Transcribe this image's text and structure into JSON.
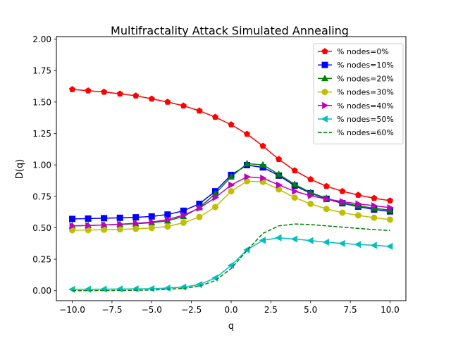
{
  "chart_data": {
    "type": "line",
    "title": "Multifractality Attack Simulated Annealing",
    "xlabel": "q",
    "ylabel": "D(q)",
    "xlim": [
      -11.0,
      11.0
    ],
    "ylim": [
      -0.08,
      2.02
    ],
    "xticks": [
      -10,
      -7.5,
      -5,
      -2.5,
      0,
      2.5,
      5,
      7.5,
      10
    ],
    "xtick_labels": [
      "−10.0",
      "−7.5",
      "−5.0",
      "−2.5",
      "0.0",
      "2.5",
      "5.0",
      "7.5",
      "10.0"
    ],
    "yticks": [
      0,
      0.25,
      0.5,
      0.75,
      1.0,
      1.25,
      1.5,
      1.75,
      2.0
    ],
    "ytick_labels": [
      "0.00",
      "0.25",
      "0.50",
      "0.75",
      "1.00",
      "1.25",
      "1.50",
      "1.75",
      "2.00"
    ],
    "grid": false,
    "legend_position": "top-right",
    "x": [
      -10,
      -9,
      -8,
      -7,
      -6,
      -5,
      -4,
      -3,
      -2,
      -1,
      0,
      1,
      2,
      3,
      4,
      5,
      6,
      7,
      8,
      9,
      10
    ],
    "series": [
      {
        "name": "% nodes=0%",
        "color": "#ff0000",
        "marker": "pentagon",
        "line": "solid",
        "values": [
          1.6,
          1.59,
          1.58,
          1.565,
          1.55,
          1.525,
          1.5,
          1.47,
          1.43,
          1.38,
          1.32,
          1.245,
          1.15,
          1.045,
          0.955,
          0.885,
          0.83,
          0.79,
          0.76,
          0.735,
          0.715
        ]
      },
      {
        "name": "% nodes=10%",
        "color": "#0000ff",
        "marker": "square",
        "line": "solid",
        "values": [
          0.57,
          0.573,
          0.576,
          0.579,
          0.583,
          0.59,
          0.605,
          0.635,
          0.69,
          0.79,
          0.92,
          0.998,
          0.98,
          0.915,
          0.835,
          0.775,
          0.73,
          0.695,
          0.668,
          0.645,
          0.63
        ]
      },
      {
        "name": "% nodes=20%",
        "color": "#008000",
        "marker": "triangle-up",
        "line": "solid",
        "values": [
          0.515,
          0.518,
          0.522,
          0.527,
          0.532,
          0.54,
          0.555,
          0.59,
          0.66,
          0.77,
          0.905,
          1.01,
          1.0,
          0.925,
          0.845,
          0.78,
          0.735,
          0.7,
          0.675,
          0.655,
          0.64
        ]
      },
      {
        "name": "% nodes=30%",
        "color": "#bfbf00",
        "marker": "circle",
        "line": "solid",
        "values": [
          0.48,
          0.482,
          0.484,
          0.487,
          0.491,
          0.498,
          0.51,
          0.54,
          0.585,
          0.665,
          0.79,
          0.87,
          0.865,
          0.805,
          0.74,
          0.69,
          0.65,
          0.62,
          0.598,
          0.58,
          0.565
        ]
      },
      {
        "name": "% nodes=40%",
        "color": "#bf00bf",
        "marker": "triangle-right",
        "line": "solid",
        "values": [
          0.515,
          0.518,
          0.522,
          0.528,
          0.535,
          0.545,
          0.565,
          0.6,
          0.655,
          0.74,
          0.84,
          0.905,
          0.895,
          0.84,
          0.79,
          0.755,
          0.728,
          0.708,
          0.69,
          0.675,
          0.66
        ]
      },
      {
        "name": "% nodes=50%",
        "color": "#00bfbf",
        "marker": "triangle-left",
        "line": "solid",
        "values": [
          0.01,
          0.011,
          0.012,
          0.013,
          0.014,
          0.016,
          0.02,
          0.028,
          0.048,
          0.1,
          0.2,
          0.325,
          0.4,
          0.42,
          0.41,
          0.398,
          0.385,
          0.375,
          0.367,
          0.36,
          0.352
        ]
      },
      {
        "name": "% nodes=60%",
        "color": "#008000",
        "marker": "none",
        "line": "dashed",
        "values": [
          0.0,
          0.0,
          0.001,
          0.002,
          0.003,
          0.005,
          0.01,
          0.018,
          0.035,
          0.08,
          0.175,
          0.32,
          0.455,
          0.515,
          0.53,
          0.525,
          0.515,
          0.505,
          0.495,
          0.485,
          0.478
        ]
      }
    ]
  }
}
